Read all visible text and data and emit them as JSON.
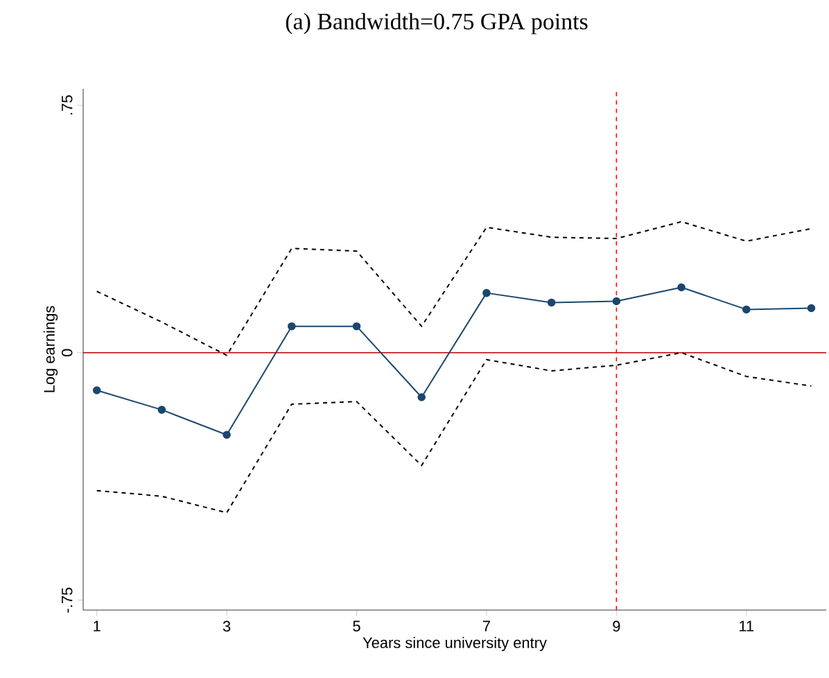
{
  "chart_data": {
    "type": "line",
    "title": "(a) Bandwidth=0.75 GPA points",
    "xlabel": "Years since university entry",
    "ylabel": "Log earnings",
    "x": [
      1,
      2,
      3,
      4,
      5,
      6,
      7,
      8,
      9,
      10,
      11,
      12
    ],
    "series": [
      {
        "color": "#000000",
        "line_style": "dashed",
        "marker": "none",
        "values": [
          0.186,
          0.093,
          -0.008,
          0.316,
          0.308,
          0.08,
          0.38,
          0.35,
          0.346,
          0.397,
          0.338,
          0.376
        ]
      },
      {
        "color": "#000000",
        "line_style": "dashed",
        "marker": "none",
        "values": [
          -0.418,
          -0.435,
          -0.485,
          -0.156,
          -0.148,
          -0.342,
          -0.021,
          -0.055,
          -0.038,
          0.0,
          -0.072,
          -0.101
        ]
      },
      {
        "color": "#1a476f",
        "line_style": "solid",
        "marker": "circle",
        "values": [
          -0.114,
          -0.173,
          -0.249,
          0.08,
          0.08,
          -0.135,
          0.181,
          0.152,
          0.156,
          0.198,
          0.131,
          0.135
        ]
      }
    ],
    "xlim": [
      0.79,
      12.23
    ],
    "ylim": [
      -0.78,
      0.8
    ],
    "xticks": [
      1,
      3,
      5,
      7,
      9,
      11
    ],
    "yticks": [
      {
        "value": -0.75,
        "label": "-.75"
      },
      0,
      {
        "value": 0.75,
        "label": ".75"
      }
    ],
    "ref_lines": [
      {
        "axis": "y",
        "value": 0,
        "color": "#c00000",
        "line_style": "solid"
      },
      {
        "axis": "x",
        "value": 9,
        "color": "#ff0000",
        "line_style": "dashed"
      }
    ],
    "tick_labels": true
  }
}
